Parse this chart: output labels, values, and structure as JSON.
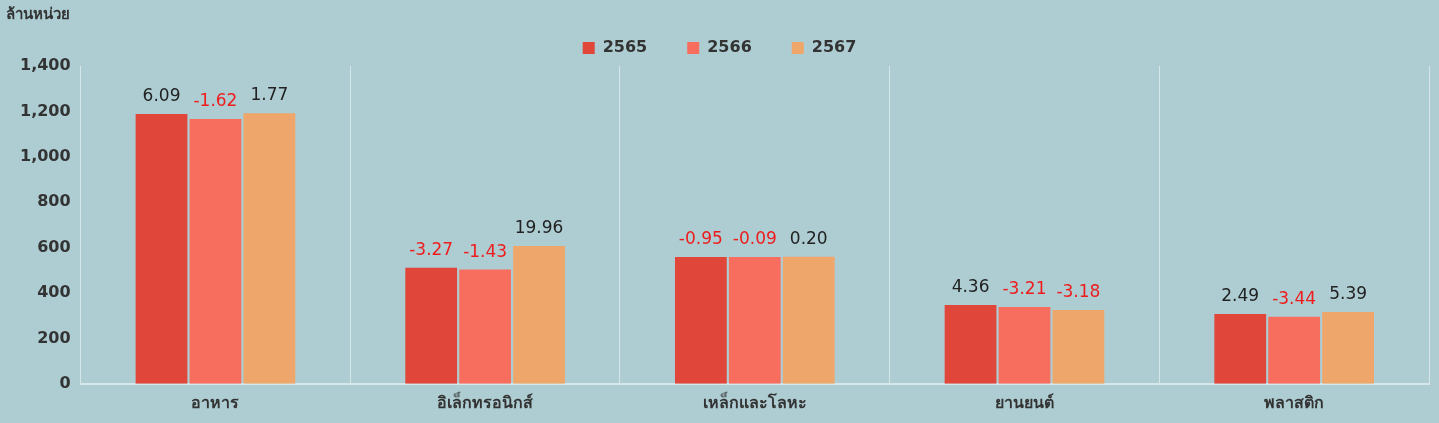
{
  "chart_data": {
    "type": "bar",
    "ylabel": "ล้านหน่วย",
    "categories": [
      "อาหาร",
      "อิเล็กทรอนิกส์",
      "เหล็กและโลหะ",
      "ยานยนต์",
      "พลาสติก"
    ],
    "series": [
      {
        "name": "2565",
        "color": "#e0463a",
        "values": [
          1188,
          511,
          559,
          347,
          308
        ]
      },
      {
        "name": "2566",
        "color": "#f76e5f",
        "values": [
          1166,
          503,
          559,
          338,
          295
        ]
      },
      {
        "name": "2567",
        "color": "#eea66a",
        "values": [
          1192,
          607,
          560,
          325,
          316
        ]
      }
    ],
    "annotations": [
      "6.09",
      "-3.27",
      "-0.95",
      "4.36",
      "2.49",
      "-1.62",
      "-1.43",
      "-0.09",
      "-3.21",
      "-3.44",
      "1.77",
      "19.96",
      "0.20",
      "-3.18",
      "5.39"
    ],
    "ylim": [
      0,
      1400
    ],
    "yticks": [
      0,
      200,
      400,
      600,
      800,
      {
        "value": 1000,
        "label": "1,000"
      },
      {
        "value": 1200,
        "label": "1,200"
      },
      {
        "value": 1400,
        "label": "1,400"
      }
    ],
    "grid": "x",
    "legend": "top"
  }
}
